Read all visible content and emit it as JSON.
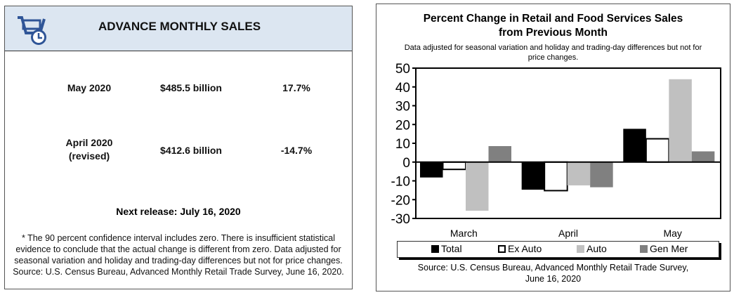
{
  "left_panel": {
    "title": "ADVANCE MONTHLY SALES",
    "icon": "shopping-cart-clock-icon",
    "rows": [
      {
        "label": "May 2020",
        "sublabel": "",
        "amount": "$485.5 billion",
        "change": "17.7%"
      },
      {
        "label": "April 2020",
        "sublabel": "(revised)",
        "amount": "$412.6 billion",
        "change": "-14.7%"
      }
    ],
    "next_release": "Next release: July 16, 2020",
    "footnote": "* The 90 percent confidence interval includes zero. There is insufficient statistical evidence to conclude that the actual change is different from zero. Data adjusted for seasonal variation and holiday and trading-day differences but not for price changes. Source: U.S. Census Bureau, Advanced Monthly Retail Trade Survey, June 16, 2020."
  },
  "chart_data": {
    "type": "bar",
    "title": "Percent Change in Retail and Food Services Sales from Previous Month",
    "subtitle": "Data adjusted for seasonal variation and holiday and trading-day differences but not for price changes.",
    "categories": [
      "March",
      "April",
      "May"
    ],
    "series": [
      {
        "name": "Total",
        "color": "#000000",
        "values": [
          -8.2,
          -14.7,
          17.7
        ]
      },
      {
        "name": "Ex Auto",
        "color": "#ffffff",
        "values": [
          -3.9,
          -15.2,
          12.4
        ]
      },
      {
        "name": "Auto",
        "color": "#c0c0c0",
        "values": [
          -25.9,
          -12.4,
          44.1
        ]
      },
      {
        "name": "Gen Mer",
        "color": "#808080",
        "values": [
          8.5,
          -13.4,
          5.7
        ]
      }
    ],
    "yticks": [
      "50",
      "40",
      "30",
      "20",
      "10",
      "0",
      "-10",
      "-20",
      "-30"
    ],
    "ylim": [
      -30,
      50
    ],
    "legend_position": "bottom",
    "source": "Source: U.S. Census Bureau, Advanced Monthly Retail Trade Survey, June 16, 2020"
  }
}
